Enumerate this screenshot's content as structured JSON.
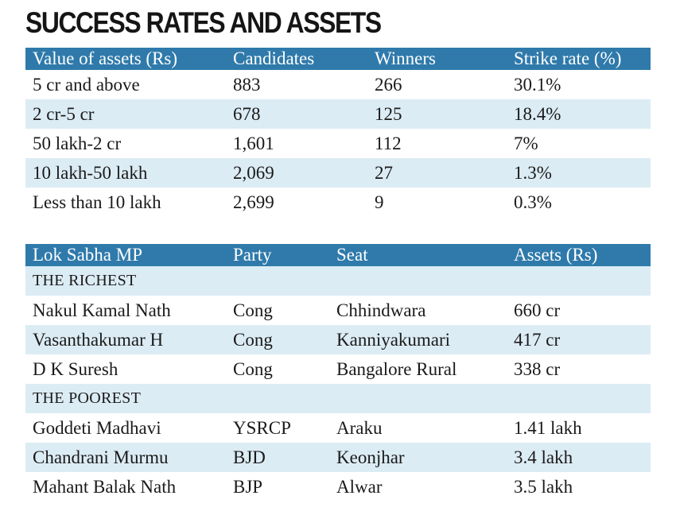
{
  "title": "SUCCESS RATES AND ASSETS",
  "assets_table": {
    "headers": [
      "Value of assets (Rs)",
      "Candidates",
      "Winners",
      "Strike rate (%)"
    ],
    "rows": [
      [
        "5 cr and above",
        "883",
        "266",
        "30.1%"
      ],
      [
        "2 cr-5 cr",
        "678",
        "125",
        "18.4%"
      ],
      [
        "50 lakh-2 cr",
        "1,601",
        "112",
        "7%"
      ],
      [
        "10 lakh-50 lakh",
        "2,069",
        "27",
        "1.3%"
      ],
      [
        "Less than 10 lakh",
        "2,699",
        "9",
        "0.3%"
      ]
    ]
  },
  "mp_table": {
    "headers": [
      "Lok Sabha MP",
      "Party",
      "Seat",
      "Assets (Rs)"
    ],
    "richest_label": "THE RICHEST",
    "richest": [
      [
        "Nakul Kamal Nath",
        "Cong",
        "Chhindwara",
        "660 cr"
      ],
      [
        "Vasanthakumar H",
        "Cong",
        "Kanniyakumari",
        "417 cr"
      ],
      [
        "D K Suresh",
        "Cong",
        "Bangalore Rural",
        "338 cr"
      ]
    ],
    "poorest_label": "THE POOREST",
    "poorest": [
      [
        "Goddeti Madhavi",
        "YSRCP",
        "Araku",
        "1.41 lakh"
      ],
      [
        "Chandrani Murmu",
        "BJD",
        "Keonjhar",
        "3.4 lakh"
      ],
      [
        "Mahant Balak Nath",
        "BJP",
        "Alwar",
        "3.5 lakh"
      ]
    ]
  },
  "colors": {
    "header_bg": "#2f7aab",
    "row_shade": "#dcecf5"
  }
}
